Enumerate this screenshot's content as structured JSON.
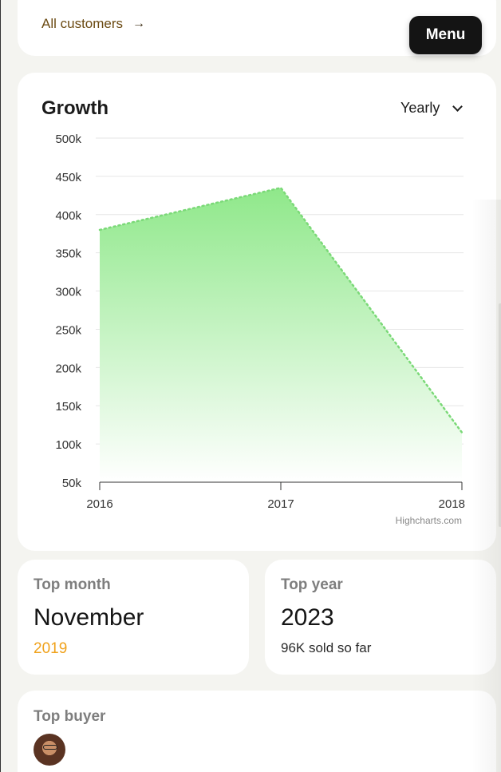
{
  "header": {
    "all_customers_label": "All customers",
    "arrow_glyph": "→",
    "menu_label": "Menu"
  },
  "growth": {
    "title": "Growth",
    "period_selected": "Yearly",
    "credit": "Highcharts.com"
  },
  "chart_data": {
    "type": "area",
    "categories": [
      "2016",
      "2017",
      "2018"
    ],
    "values": [
      380000,
      435000,
      115000
    ],
    "y_ticks": [
      50000,
      100000,
      150000,
      200000,
      250000,
      300000,
      350000,
      400000,
      450000,
      500000
    ],
    "y_tick_labels": [
      "50k",
      "100k",
      "150k",
      "200k",
      "250k",
      "300k",
      "350k",
      "400k",
      "450k",
      "500k"
    ],
    "ylim": [
      50000,
      500000
    ],
    "grid": true,
    "legend": "none",
    "colors": {
      "fill_top": "#8fe88a",
      "fill_bottom": "#ffffff",
      "line": "#7bd978"
    }
  },
  "stats": {
    "top_month": {
      "label": "Top month",
      "value": "November",
      "sub": "2019"
    },
    "top_year": {
      "label": "Top year",
      "value": "2023",
      "sub": "96K sold so far"
    }
  },
  "top_buyer": {
    "label": "Top buyer"
  },
  "colors": {
    "accent": "#f0a21c",
    "menu_bg": "#141414",
    "page_bg": "#f4f4f0"
  }
}
